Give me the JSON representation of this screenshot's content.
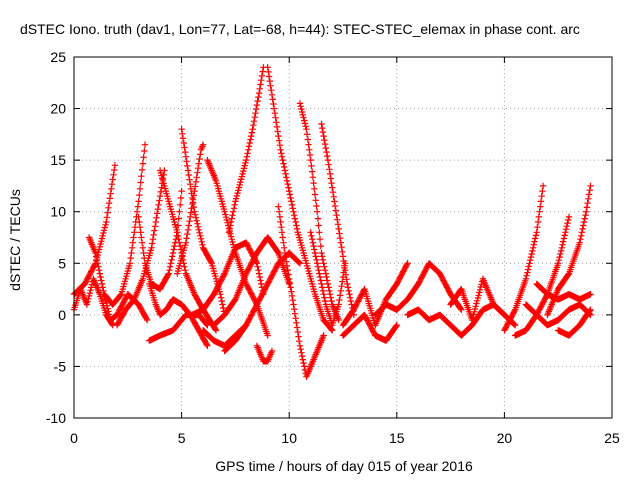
{
  "chart_data": {
    "type": "scatter",
    "title": "dSTEC Iono. truth (dav1, Lon=77, Lat=-68, h=44): STEC-STEC_elemax in phase cont. arc",
    "xlabel": "GPS time / hours of day 015 of year 2016",
    "ylabel": "dSTEC  / TECUs",
    "xlim": [
      0,
      25
    ],
    "ylim": [
      -10,
      25
    ],
    "x_ticks": [
      "0",
      "5",
      "10",
      "15",
      "20",
      "25"
    ],
    "y_ticks": [
      "-10",
      "-5",
      "0",
      "5",
      "10",
      "15",
      "20",
      "25"
    ],
    "grid": true,
    "marker": "+",
    "color": "#ff0000",
    "series": [
      {
        "x": [
          0.0,
          0.3,
          0.6,
          0.9,
          1.2,
          1.5,
          1.8
        ],
        "y": [
          0.5,
          2.5,
          1.0,
          3.5,
          2.0,
          0.0,
          -1.0
        ]
      },
      {
        "x": [
          0.0,
          0.5,
          1.0,
          1.5,
          1.9
        ],
        "y": [
          2.0,
          3.0,
          5.0,
          9.0,
          14.5
        ]
      },
      {
        "x": [
          0.7,
          1.0,
          1.4,
          1.8,
          2.2,
          2.6,
          3.0,
          3.3
        ],
        "y": [
          7.5,
          6.0,
          2.0,
          1.0,
          2.0,
          5.0,
          11.0,
          16.5
        ]
      },
      {
        "x": [
          1.4,
          1.7,
          2.0,
          2.5,
          3.0,
          3.4
        ],
        "y": [
          2.0,
          -0.5,
          0.0,
          2.0,
          1.0,
          -0.5
        ]
      },
      {
        "x": [
          2.0,
          2.4,
          2.8,
          3.2,
          3.6,
          3.8,
          4.0,
          4.2
        ],
        "y": [
          -1.0,
          0.5,
          1.5,
          3.5,
          6.5,
          9.0,
          11.5,
          14.0
        ]
      },
      {
        "x": [
          3.5,
          3.8,
          4.0,
          4.3,
          4.6,
          5.0,
          5.4,
          5.8,
          6.2
        ],
        "y": [
          3.0,
          1.0,
          0.0,
          0.5,
          1.5,
          1.0,
          0.0,
          -1.5,
          -3.0
        ]
      },
      {
        "x": [
          3.5,
          4.0,
          4.6,
          5.2,
          5.8,
          6.2
        ],
        "y": [
          -2.5,
          -2.0,
          -1.5,
          0.0,
          0.0,
          -1.0
        ]
      },
      {
        "x": [
          3.0,
          3.3,
          3.6,
          4.0,
          4.4,
          4.8,
          5.0
        ],
        "y": [
          9.5,
          5.0,
          3.0,
          2.5,
          4.0,
          8.0,
          12.0
        ]
      },
      {
        "x": [
          4.0,
          4.4,
          4.8,
          5.2,
          5.6,
          6.0,
          6.3,
          6.6
        ],
        "y": [
          14.0,
          11.0,
          8.0,
          4.0,
          2.0,
          0.5,
          -0.5,
          -1.5
        ]
      },
      {
        "x": [
          5.0,
          5.3,
          5.6,
          6.0,
          6.4,
          6.8,
          7.0
        ],
        "y": [
          18.0,
          14.0,
          10.0,
          6.5,
          5.0,
          2.0,
          0.0
        ]
      },
      {
        "x": [
          4.8,
          5.2,
          5.6,
          5.9,
          6.0
        ],
        "y": [
          4.0,
          7.0,
          12.0,
          16.0,
          16.5
        ]
      },
      {
        "x": [
          5.5,
          6.0,
          6.5,
          7.0,
          7.5,
          8.0,
          8.5,
          8.8
        ],
        "y": [
          0.0,
          0.5,
          2.0,
          4.0,
          6.5,
          7.0,
          5.0,
          2.0
        ]
      },
      {
        "x": [
          6.2,
          6.6,
          7.0,
          7.5,
          8.0,
          8.5,
          9.0
        ],
        "y": [
          15.0,
          13.0,
          10.0,
          6.0,
          3.0,
          1.0,
          -2.0
        ]
      },
      {
        "x": [
          6.0,
          6.5,
          7.0,
          7.5,
          8.0
        ],
        "y": [
          -1.5,
          -2.5,
          -3.0,
          -2.0,
          -1.0
        ]
      },
      {
        "x": [
          6.5,
          7.0,
          7.5,
          8.0,
          8.5,
          9.0,
          9.5,
          10.0
        ],
        "y": [
          -1.0,
          0.0,
          1.5,
          4.0,
          6.0,
          7.5,
          6.0,
          3.0
        ]
      },
      {
        "x": [
          7.0,
          7.5,
          8.0,
          8.5,
          9.0,
          9.5,
          10.0,
          10.5
        ],
        "y": [
          -3.5,
          -2.5,
          -1.0,
          1.0,
          3.0,
          5.0,
          6.0,
          5.0
        ]
      },
      {
        "x": [
          7.2,
          7.5,
          8.0,
          8.3,
          8.6,
          8.8
        ],
        "y": [
          8.0,
          11.0,
          15.0,
          18.0,
          21.5,
          24.0
        ]
      },
      {
        "x": [
          8.5,
          8.8,
          9.0,
          9.2
        ],
        "y": [
          -3.0,
          -4.5,
          -4.5,
          -3.5
        ]
      },
      {
        "x": [
          9.0,
          9.3,
          9.6,
          10.0,
          10.4,
          10.8,
          11.2,
          11.6,
          12.0
        ],
        "y": [
          24.0,
          20.0,
          16.0,
          12.0,
          8.0,
          5.0,
          2.0,
          -0.5,
          -1.5
        ]
      },
      {
        "x": [
          9.5,
          9.8,
          10.2,
          10.5,
          10.8,
          11.2,
          11.6
        ],
        "y": [
          10.5,
          6.0,
          1.0,
          -3.0,
          -6.0,
          -4.0,
          -2.0
        ]
      },
      {
        "x": [
          10.5,
          10.8,
          11.0,
          11.3,
          11.5,
          11.8,
          12.0,
          12.3
        ],
        "y": [
          20.5,
          18.0,
          15.0,
          10.0,
          6.0,
          3.0,
          1.0,
          -0.5
        ]
      },
      {
        "x": [
          11.0,
          11.3,
          11.7,
          12.0,
          12.3,
          12.6
        ],
        "y": [
          8.0,
          5.0,
          1.0,
          -1.0,
          1.0,
          5.0
        ]
      },
      {
        "x": [
          11.5,
          11.8,
          12.1,
          12.4,
          12.7,
          13.0
        ],
        "y": [
          18.5,
          15.0,
          11.0,
          7.0,
          3.0,
          0.0
        ]
      },
      {
        "x": [
          12.5,
          13.0,
          13.5,
          14.0,
          14.5,
          15.0,
          15.5
        ],
        "y": [
          -1.0,
          0.5,
          2.5,
          -1.0,
          1.5,
          3.0,
          5.0
        ]
      },
      {
        "x": [
          12.5,
          13.0,
          13.5,
          14.0,
          14.5,
          15.0
        ],
        "y": [
          -2.0,
          -1.0,
          0.0,
          -2.0,
          -2.5,
          -1.0
        ]
      },
      {
        "x": [
          14.0,
          14.5,
          15.0,
          15.5,
          16.0,
          16.5,
          17.0,
          17.5,
          18.0
        ],
        "y": [
          0.0,
          1.0,
          0.5,
          1.5,
          3.0,
          5.0,
          4.0,
          2.0,
          0.5
        ]
      },
      {
        "x": [
          15.5,
          16.0,
          16.5,
          17.0,
          17.5,
          18.0,
          18.5,
          19.0,
          19.5,
          20.0
        ],
        "y": [
          0.0,
          0.5,
          -0.5,
          0.0,
          -1.0,
          -2.0,
          -1.0,
          0.5,
          1.0,
          0.0
        ]
      },
      {
        "x": [
          17.5,
          18.0,
          18.5,
          19.0,
          19.5,
          20.0,
          20.5
        ],
        "y": [
          1.0,
          2.5,
          -0.5,
          3.5,
          1.0,
          0.0,
          -1.0
        ]
      },
      {
        "x": [
          20.0,
          20.5,
          21.0,
          21.5,
          21.8
        ],
        "y": [
          -1.5,
          0.5,
          3.5,
          8.0,
          12.5
        ]
      },
      {
        "x": [
          20.5,
          21.0,
          21.5,
          22.0,
          22.5,
          23.0
        ],
        "y": [
          -2.0,
          -1.5,
          0.0,
          2.0,
          5.0,
          9.5
        ]
      },
      {
        "x": [
          21.0,
          21.5,
          22.0,
          22.5,
          23.0,
          23.5,
          24.0
        ],
        "y": [
          1.0,
          0.0,
          -1.0,
          -0.5,
          0.5,
          1.0,
          0.0
        ]
      },
      {
        "x": [
          21.5,
          22.0,
          22.5,
          23.0,
          23.5,
          24.0
        ],
        "y": [
          3.0,
          2.0,
          1.5,
          2.0,
          1.5,
          2.0
        ]
      },
      {
        "x": [
          22.0,
          22.5,
          23.0,
          23.5,
          23.8,
          24.0
        ],
        "y": [
          0.0,
          2.5,
          4.0,
          7.0,
          10.0,
          12.5
        ]
      },
      {
        "x": [
          22.5,
          23.0,
          23.5,
          24.0
        ],
        "y": [
          -1.5,
          -2.0,
          -1.0,
          0.5
        ]
      }
    ]
  }
}
